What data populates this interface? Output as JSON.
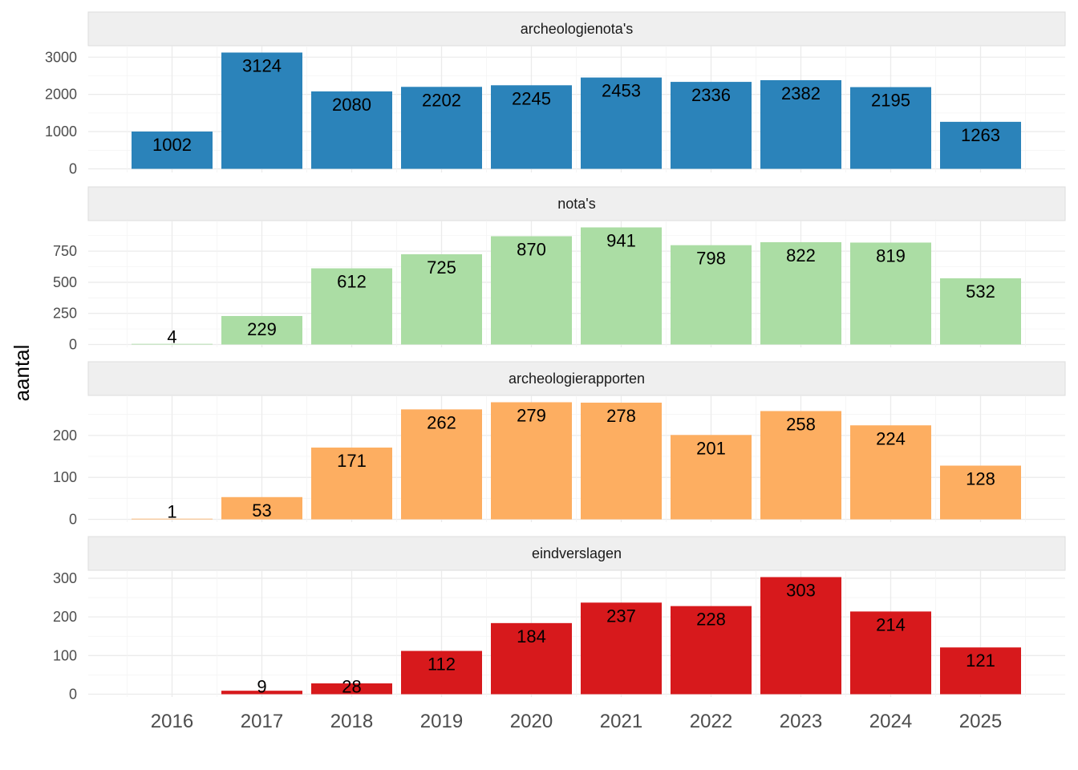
{
  "chart_data": {
    "type": "bar",
    "ylabel": "aantal",
    "xlabel": "",
    "categories": [
      "2016",
      "2017",
      "2018",
      "2019",
      "2020",
      "2021",
      "2022",
      "2023",
      "2024",
      "2025"
    ],
    "grid": true,
    "panels": [
      {
        "name": "archeologienota's",
        "color": "#2b83ba",
        "values": [
          1002,
          3124,
          2080,
          2202,
          2245,
          2453,
          2336,
          2382,
          2195,
          1263
        ],
        "yticks": [
          0,
          1000,
          2000,
          3000
        ],
        "ylim": [
          -100,
          3124
        ]
      },
      {
        "name": "nota's",
        "color": "#abdda4",
        "values": [
          4,
          229,
          612,
          725,
          870,
          941,
          798,
          822,
          819,
          532
        ],
        "yticks": [
          0,
          250,
          500,
          750
        ],
        "ylim": [
          0,
          941
        ]
      },
      {
        "name": "archeologierapporten",
        "color": "#fdae61",
        "values": [
          1,
          53,
          171,
          262,
          279,
          278,
          201,
          258,
          224,
          128
        ],
        "yticks": [
          0,
          100,
          200
        ],
        "ylim": [
          0,
          279
        ]
      },
      {
        "name": "eindverslagen",
        "color": "#d7191c",
        "values": [
          null,
          9,
          28,
          112,
          184,
          237,
          228,
          303,
          214,
          121
        ],
        "yticks": [
          0,
          100,
          200,
          300
        ],
        "ylim": [
          0,
          303
        ]
      }
    ]
  }
}
